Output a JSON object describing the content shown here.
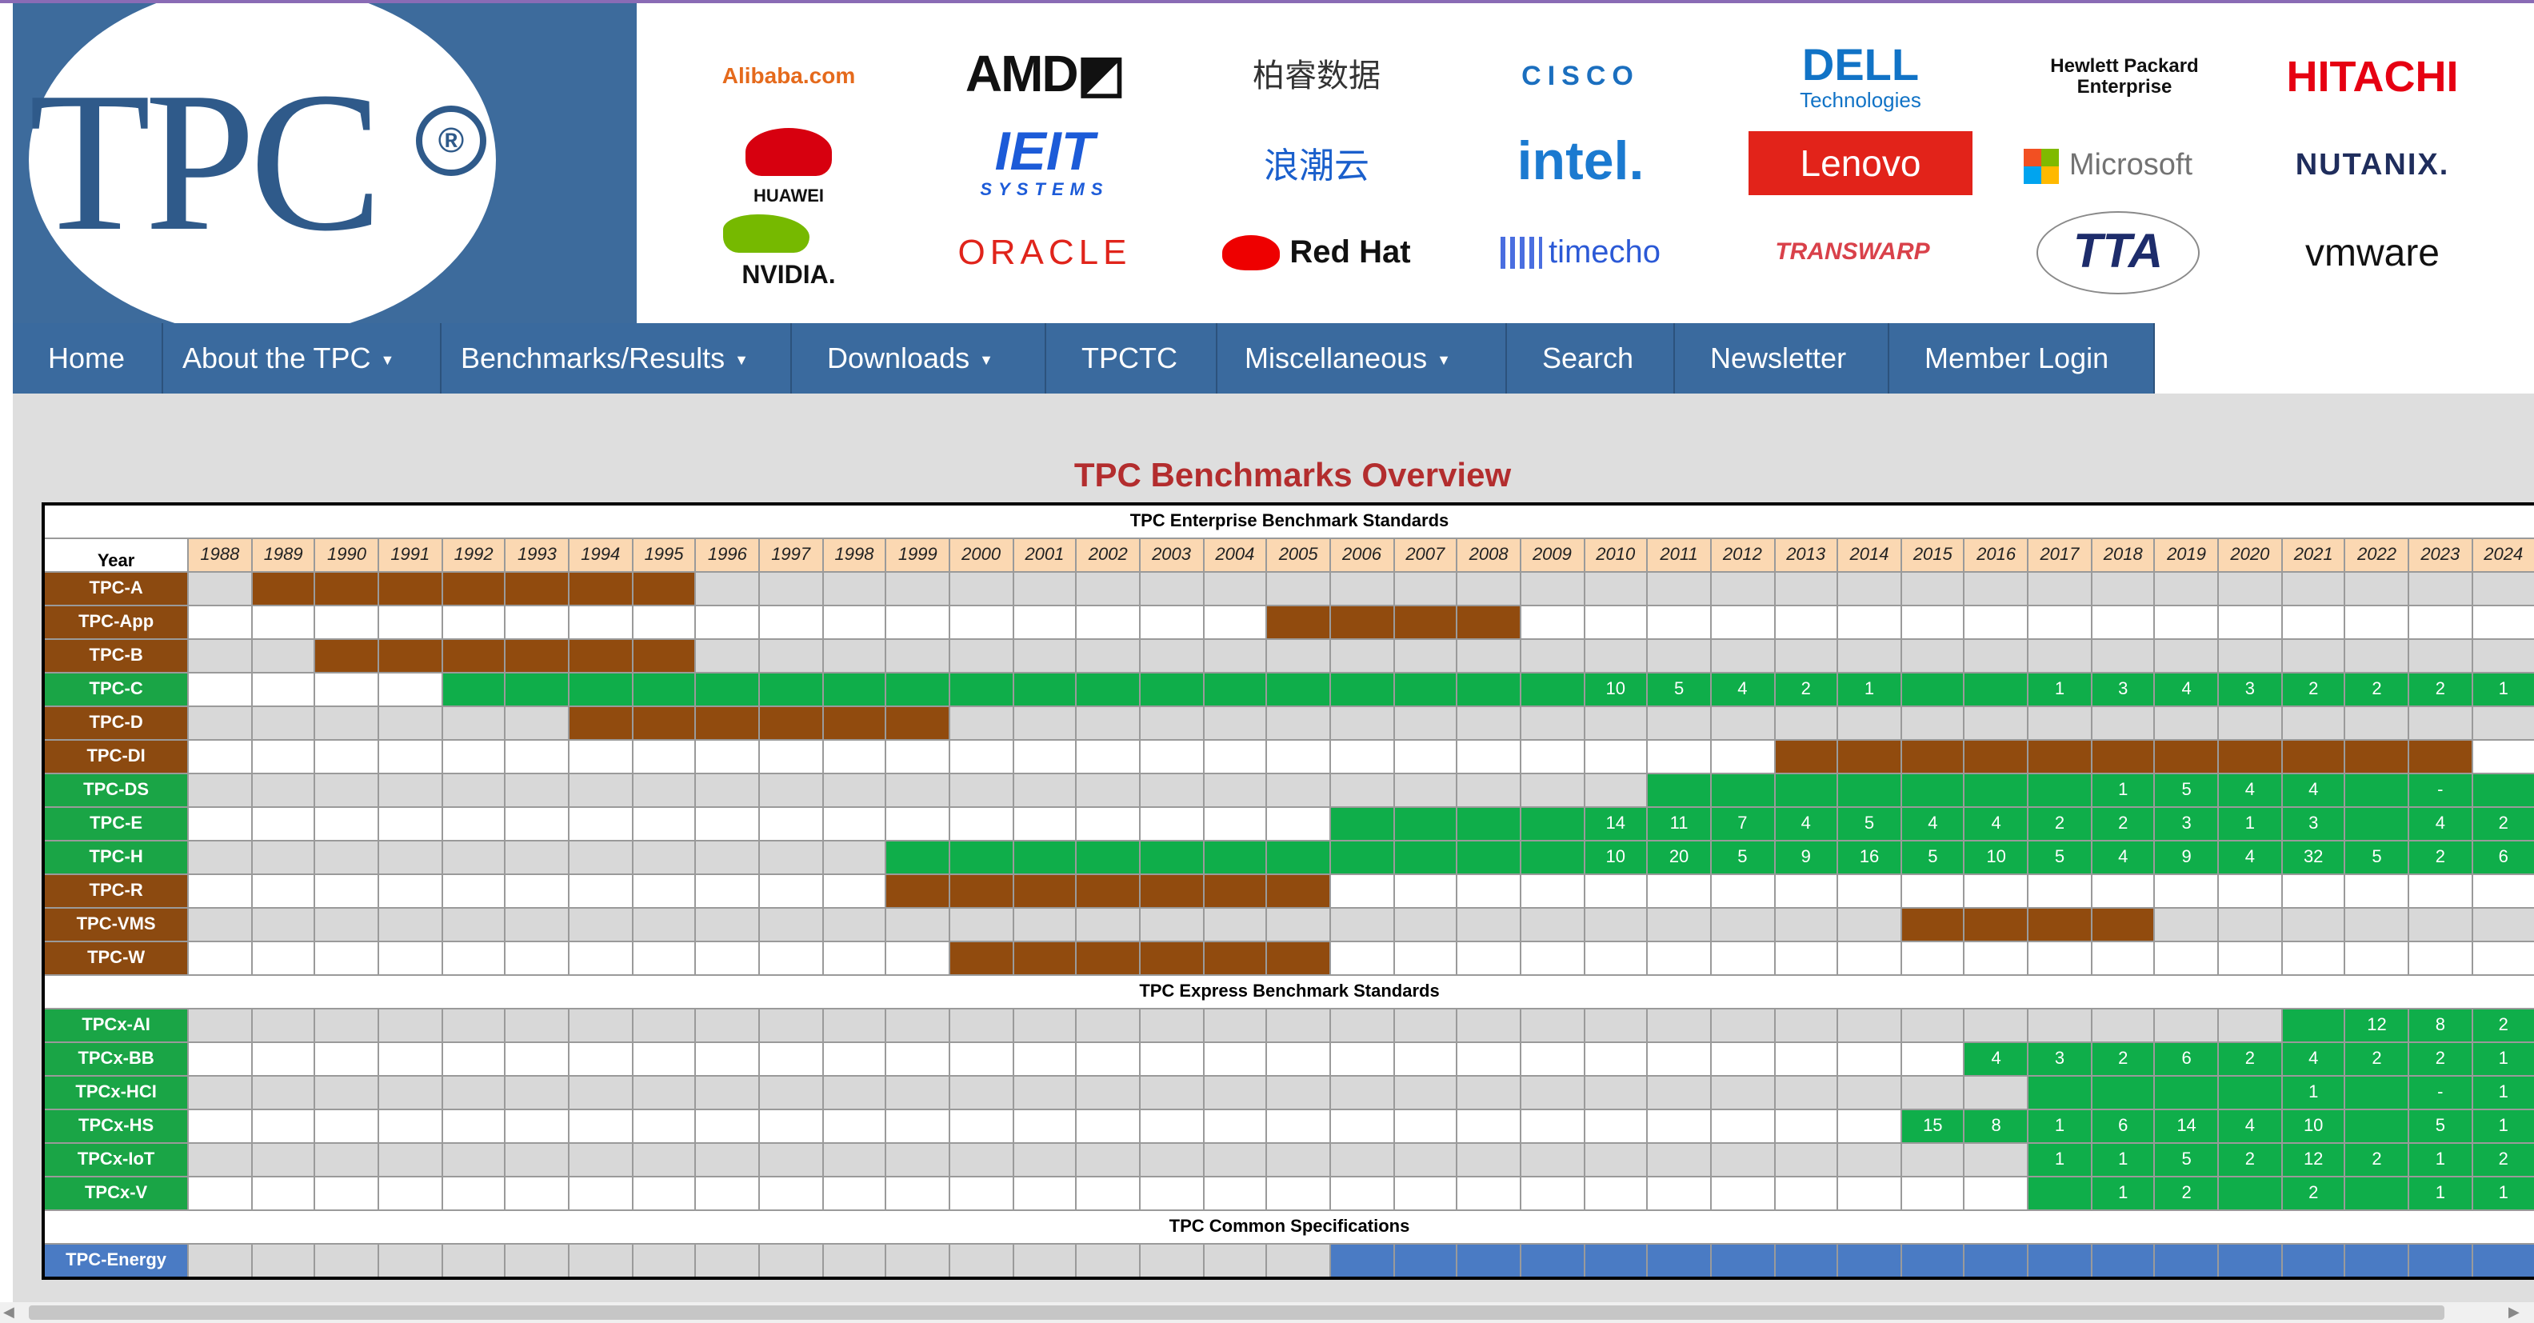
{
  "logo": {
    "text": "TPC",
    "registered": "®"
  },
  "members": [
    {
      "name": "Alibaba",
      "text": "Alibaba.com",
      "color": "#e56a1c"
    },
    {
      "name": "AMD",
      "text": "AMD◩",
      "color": "#111111"
    },
    {
      "name": "Bairui",
      "text": "柏睿数据",
      "color": "#333333"
    },
    {
      "name": "Cisco",
      "text": "CISCO",
      "color": "#1b6fbf"
    },
    {
      "name": "Dell",
      "text": "DELL",
      "sub": "Technologies",
      "color": "#1173c6"
    },
    {
      "name": "HPE",
      "text": "Hewlett Packard",
      "sub": "Enterprise",
      "color": "#111111"
    },
    {
      "name": "Hitachi",
      "text": "HITACHI",
      "color": "#e60012"
    },
    {
      "name": "Huawei",
      "text": "HUAWEI",
      "color": "#111111"
    },
    {
      "name": "IEIT",
      "text": "IEIT",
      "sub": "SYSTEMS",
      "color": "#1c5bd8"
    },
    {
      "name": "Inspur",
      "text": "浪潮云",
      "color": "#1a5fcc"
    },
    {
      "name": "Intel",
      "text": "intel.",
      "color": "#1b7ad0"
    },
    {
      "name": "Lenovo",
      "text": "Lenovo",
      "color": "#ffffff"
    },
    {
      "name": "Microsoft",
      "text": "Microsoft",
      "color": "#737373"
    },
    {
      "name": "Nutanix",
      "text": "NUTANIX.",
      "color": "#1f2d5c"
    },
    {
      "name": "NVIDIA",
      "text": "NVIDIA.",
      "color": "#111111"
    },
    {
      "name": "Oracle",
      "text": "ORACLE",
      "color": "#e0241b"
    },
    {
      "name": "RedHat",
      "text": "Red Hat",
      "color": "#111111"
    },
    {
      "name": "Timecho",
      "text": "timecho",
      "color": "#2b59d6"
    },
    {
      "name": "Transwarp",
      "text": "TRANSWARP",
      "color": "#d9414a"
    },
    {
      "name": "TTA",
      "text": "TTA",
      "color": "#1d2c6b"
    },
    {
      "name": "VMware",
      "text": "vmware",
      "color": "#111111"
    }
  ],
  "nav": [
    {
      "label": "Home",
      "caret": false
    },
    {
      "label": "About the TPC",
      "caret": true
    },
    {
      "label": "Benchmarks/Results",
      "caret": true
    },
    {
      "label": "Downloads",
      "caret": true
    },
    {
      "label": "TPCTC",
      "caret": false
    },
    {
      "label": "Miscellaneous",
      "caret": true
    },
    {
      "label": "Search",
      "caret": false
    },
    {
      "label": "Newsletter",
      "caret": false
    },
    {
      "label": "Member Login",
      "caret": false
    }
  ],
  "caret_glyph": "▼",
  "page_title": "TPC Benchmarks Overview",
  "table": {
    "year_label": "Year",
    "years": [
      "1988",
      "1989",
      "1990",
      "1991",
      "1992",
      "1993",
      "1994",
      "1995",
      "1996",
      "1997",
      "1998",
      "1999",
      "2000",
      "2001",
      "2002",
      "2003",
      "2004",
      "2005",
      "2006",
      "2007",
      "2008",
      "2009",
      "2010",
      "2011",
      "2012",
      "2013",
      "2014",
      "2015",
      "2016",
      "2017",
      "2018",
      "2019",
      "2020",
      "2021",
      "2022",
      "2023",
      "2024"
    ],
    "sections": [
      {
        "title": "TPC Enterprise  Benchmark Standards",
        "rows": [
          {
            "name": "TPC-A",
            "color": "brown",
            "active": [
              1989,
              1995
            ],
            "values": {}
          },
          {
            "name": "TPC-App",
            "color": "brown",
            "active": [
              2005,
              2008
            ],
            "values": {}
          },
          {
            "name": "TPC-B",
            "color": "brown",
            "active": [
              1990,
              1995
            ],
            "values": {}
          },
          {
            "name": "TPC-C",
            "color": "green",
            "active": [
              1992,
              2024
            ],
            "values": {
              "2010": "10",
              "2011": "5",
              "2012": "4",
              "2013": "2",
              "2014": "1",
              "2017": "1",
              "2018": "3",
              "2019": "4",
              "2020": "3",
              "2021": "2",
              "2022": "2",
              "2023": "2",
              "2024": "1"
            }
          },
          {
            "name": "TPC-D",
            "color": "brown",
            "active": [
              1994,
              1999
            ],
            "values": {}
          },
          {
            "name": "TPC-DI",
            "color": "brown",
            "active": [
              2013,
              2023
            ],
            "values": {}
          },
          {
            "name": "TPC-DS",
            "color": "green",
            "active": [
              2011,
              2024
            ],
            "values": {
              "2018": "1",
              "2019": "5",
              "2020": "4",
              "2021": "4",
              "2023": "-"
            }
          },
          {
            "name": "TPC-E",
            "color": "green",
            "active": [
              2006,
              2024
            ],
            "values": {
              "2010": "14",
              "2011": "11",
              "2012": "7",
              "2013": "4",
              "2014": "5",
              "2015": "4",
              "2016": "4",
              "2017": "2",
              "2018": "2",
              "2019": "3",
              "2020": "1",
              "2021": "3",
              "2023": "4",
              "2024": "2"
            }
          },
          {
            "name": "TPC-H",
            "color": "green",
            "active": [
              1999,
              2024
            ],
            "values": {
              "2010": "10",
              "2011": "20",
              "2012": "5",
              "2013": "9",
              "2014": "16",
              "2015": "5",
              "2016": "10",
              "2017": "5",
              "2018": "4",
              "2019": "9",
              "2020": "4",
              "2021": "32",
              "2022": "5",
              "2023": "2",
              "2024": "6"
            }
          },
          {
            "name": "TPC-R",
            "color": "brown",
            "active": [
              1999,
              2005
            ],
            "values": {}
          },
          {
            "name": "TPC-VMS",
            "color": "brown",
            "active": [
              2015,
              2018
            ],
            "values": {}
          },
          {
            "name": "TPC-W",
            "color": "brown",
            "active": [
              2000,
              2005
            ],
            "values": {}
          }
        ]
      },
      {
        "title": "TPC Express  Benchmark Standards",
        "rows": [
          {
            "name": "TPCx-AI",
            "color": "green",
            "active": [
              2021,
              2024
            ],
            "values": {
              "2022": "12",
              "2023": "8",
              "2024": "2"
            }
          },
          {
            "name": "TPCx-BB",
            "color": "green",
            "active": [
              2016,
              2024
            ],
            "values": {
              "2016": "4",
              "2017": "3",
              "2018": "2",
              "2019": "6",
              "2020": "2",
              "2021": "4",
              "2022": "2",
              "2023": "2",
              "2024": "1"
            }
          },
          {
            "name": "TPCx-HCI",
            "color": "green",
            "active": [
              2017,
              2024
            ],
            "values": {
              "2021": "1",
              "2023": "-",
              "2024": "1"
            }
          },
          {
            "name": "TPCx-HS",
            "color": "green",
            "active": [
              2015,
              2024
            ],
            "values": {
              "2015": "15",
              "2016": "8",
              "2017": "1",
              "2018": "6",
              "2019": "14",
              "2020": "4",
              "2021": "10",
              "2023": "5",
              "2024": "1"
            }
          },
          {
            "name": "TPCx-IoT",
            "color": "green",
            "active": [
              2017,
              2024
            ],
            "values": {
              "2017": "1",
              "2018": "1",
              "2019": "5",
              "2020": "2",
              "2021": "12",
              "2022": "2",
              "2023": "1",
              "2024": "2"
            }
          },
          {
            "name": "TPCx-V",
            "color": "green",
            "active": [
              2017,
              2024
            ],
            "values": {
              "2018": "1",
              "2019": "2",
              "2021": "2",
              "2023": "1",
              "2024": "1"
            }
          }
        ]
      },
      {
        "title": "TPC Common Specifications",
        "rows": [
          {
            "name": "TPC-Energy",
            "color": "blue",
            "active": [
              2006,
              2024
            ],
            "values": {}
          }
        ]
      }
    ]
  },
  "scroll": {
    "left_arrow": "◀",
    "right_arrow": "▶"
  }
}
